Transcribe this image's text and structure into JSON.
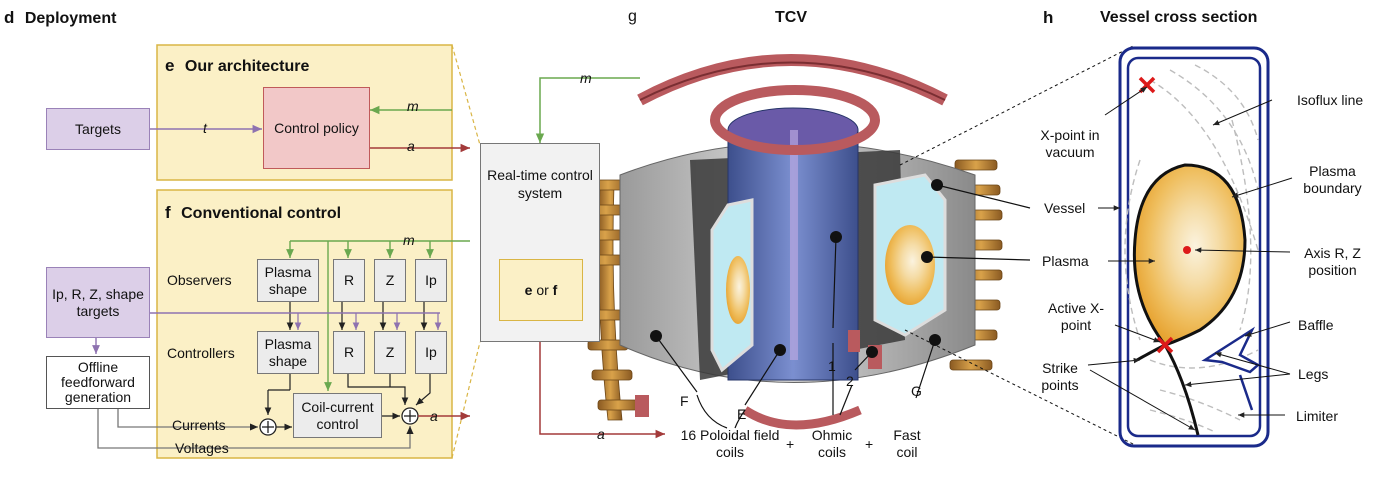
{
  "panel_d": {
    "letter": "d",
    "title": "Deployment"
  },
  "panel_e": {
    "letter": "e",
    "title": "Our architecture"
  },
  "panel_f": {
    "letter": "f",
    "title": "Conventional control"
  },
  "panel_g": {
    "letter": "g",
    "title": "TCV"
  },
  "panel_h": {
    "letter": "h",
    "title": "Vessel cross section"
  },
  "architecture": {
    "targets": "Targets",
    "control_policy": "Control policy",
    "signal_t": "t",
    "signal_m": "m",
    "signal_a": "a"
  },
  "realtime": {
    "system": "Real-time control system",
    "e_label": "e",
    "or_label": "or",
    "f_label": "f",
    "signal_m": "m",
    "signal_a": "a"
  },
  "conventional": {
    "observers": "Observers",
    "controllers": "Controllers",
    "plasma_shape": "Plasma shape",
    "r": "R",
    "z": "Z",
    "ip": "Ip",
    "shape_targets": "Ip, R, Z, shape targets",
    "offline": "Offline feedforward generation",
    "currents": "Currents",
    "voltages": "Voltages",
    "coil_current": "Coil-current control",
    "signal_m": "m",
    "signal_a": "a",
    "sum_symbol": "+"
  },
  "tcv_labels": {
    "F": "F",
    "E": "E",
    "one": "1",
    "two": "2",
    "G": "G",
    "poloidal": "16 Poloidal field coils",
    "ohmic": "Ohmic coils",
    "fast": "Fast coil",
    "plus": "+"
  },
  "cross_section": {
    "x_point_vacuum": "X-point in vacuum",
    "isoflux": "Isoflux line",
    "plasma_boundary": "Plasma boundary",
    "vessel": "Vessel",
    "plasma": "Plasma",
    "axis": "Axis R, Z position",
    "active_x_point": "Active X-point",
    "baffle": "Baffle",
    "strike_points": "Strike points",
    "legs": "Legs",
    "limiter": "Limiter"
  },
  "colors": {
    "panel_bg": "#fbf0c6",
    "panel_border": "#d9b545",
    "targets_fill": "#dccfe8",
    "targets_border": "#9a82b8",
    "policy_fill": "#f2c8c8",
    "policy_border": "#c05a5a",
    "arrow_m": "#6aa84f",
    "arrow_a": "#a33a3a",
    "arrow_t": "#8e72b0",
    "vessel": "#1a2a8a",
    "plasma_core": "#f6e9c8",
    "plasma_edge": "#e8a632",
    "xpoint": "#dd1a1a"
  }
}
